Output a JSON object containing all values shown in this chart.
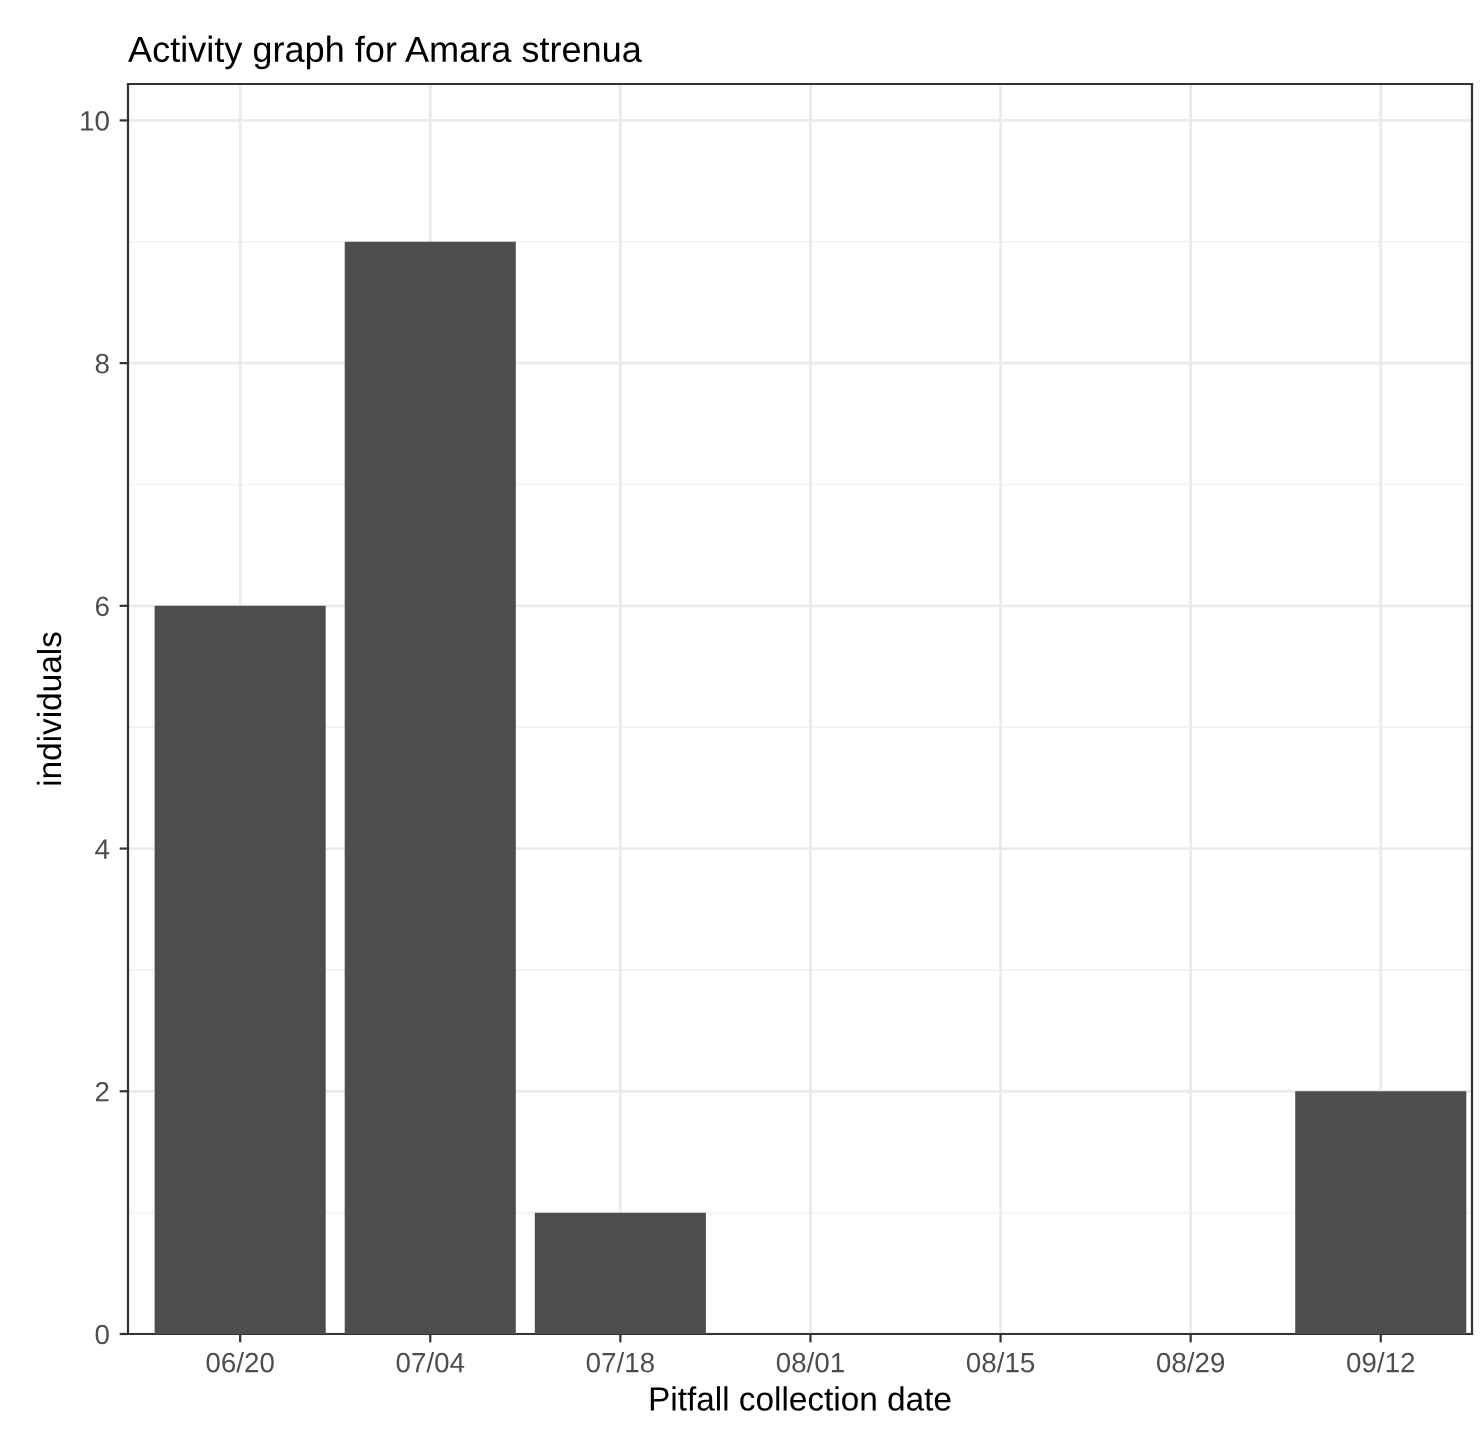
{
  "chart_data": {
    "type": "bar",
    "title": "Activity graph for Amara strenua",
    "xlabel": "Pitfall collection date",
    "ylabel": "individuals",
    "categories": [
      "06/20",
      "07/04",
      "07/18",
      "08/01",
      "08/15",
      "08/29",
      "09/12"
    ],
    "values": [
      6,
      9,
      1,
      0,
      0,
      0,
      2
    ],
    "color": "#4d4d4d",
    "ylim": [
      0,
      10.3
    ],
    "yticks": [
      0,
      2,
      4,
      6,
      8,
      10
    ],
    "grid": true,
    "legend": false
  }
}
